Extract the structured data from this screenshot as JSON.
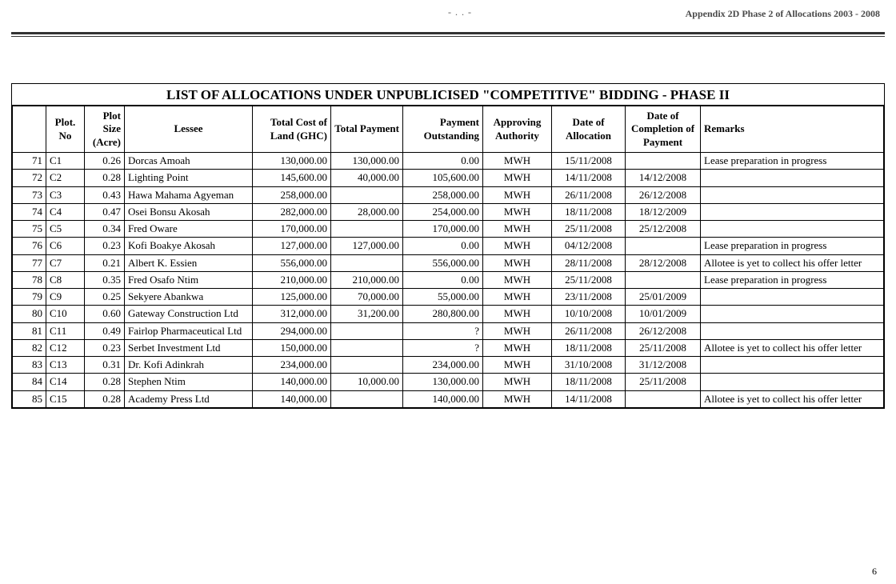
{
  "header": {
    "appendix": "Appendix 2D Phase 2 of Allocations 2003 - 2008",
    "smudge": "- . . -"
  },
  "table": {
    "title": "LIST OF ALLOCATIONS UNDER UNPUBLICISED \"COMPETITIVE\" BIDDING - PHASE II",
    "columns": {
      "idx": "",
      "plot": "Plot. No",
      "size": "Plot Size (Acre)",
      "lessee": "Lessee",
      "cost": "Total Cost of Land (GHC)",
      "paid": "Total Payment",
      "out": "Payment Outstanding",
      "auth": "Approving Authority",
      "dalloc": "Date of Allocation",
      "dcomp": "Date of Completion of Payment",
      "remarks": "Remarks"
    },
    "rows": [
      {
        "idx": "71",
        "plot": "C1",
        "size": "0.26",
        "lessee": "Dorcas Amoah",
        "cost": "130,000.00",
        "paid": "130,000.00",
        "out": "0.00",
        "auth": "MWH",
        "dalloc": "15/11/2008",
        "dcomp": "",
        "remarks": "Lease preparation in progress"
      },
      {
        "idx": "72",
        "plot": "C2",
        "size": "0.28",
        "lessee": "Lighting Point",
        "cost": "145,600.00",
        "paid": "40,000.00",
        "out": "105,600.00",
        "auth": "MWH",
        "dalloc": "14/11/2008",
        "dcomp": "14/12/2008",
        "remarks": ""
      },
      {
        "idx": "73",
        "plot": "C3",
        "size": "0.43",
        "lessee": "Hawa Mahama Agyeman",
        "cost": "258,000.00",
        "paid": "",
        "out": "258,000.00",
        "auth": "MWH",
        "dalloc": "26/11/2008",
        "dcomp": "26/12/2008",
        "remarks": ""
      },
      {
        "idx": "74",
        "plot": "C4",
        "size": "0.47",
        "lessee": "Osei Bonsu Akosah",
        "cost": "282,000.00",
        "paid": "28,000.00",
        "out": "254,000.00",
        "auth": "MWH",
        "dalloc": "18/11/2008",
        "dcomp": "18/12/2009",
        "remarks": ""
      },
      {
        "idx": "75",
        "plot": "C5",
        "size": "0.34",
        "lessee": "Fred Oware",
        "cost": "170,000.00",
        "paid": "",
        "out": "170,000.00",
        "auth": "MWH",
        "dalloc": "25/11/2008",
        "dcomp": "25/12/2008",
        "remarks": ""
      },
      {
        "idx": "76",
        "plot": "C6",
        "size": "0.23",
        "lessee": "Kofi Boakye Akosah",
        "cost": "127,000.00",
        "paid": "127,000.00",
        "out": "0.00",
        "auth": "MWH",
        "dalloc": "04/12/2008",
        "dcomp": "",
        "remarks": "Lease preparation in progress"
      },
      {
        "idx": "77",
        "plot": "C7",
        "size": "0.21",
        "lessee": "Albert K. Essien",
        "cost": "556,000.00",
        "paid": "",
        "out": "556,000.00",
        "auth": "MWH",
        "dalloc": "28/11/2008",
        "dcomp": "28/12/2008",
        "remarks": "Allotee is yet to collect his offer letter"
      },
      {
        "idx": "78",
        "plot": "C8",
        "size": "0.35",
        "lessee": "Fred Osafo Ntim",
        "cost": "210,000.00",
        "paid": "210,000.00",
        "out": "0.00",
        "auth": "MWH",
        "dalloc": "25/11/2008",
        "dcomp": "",
        "remarks": "Lease preparation in progress"
      },
      {
        "idx": "79",
        "plot": "C9",
        "size": "0.25",
        "lessee": "Sekyere Abankwa",
        "cost": "125,000.00",
        "paid": "70,000.00",
        "out": "55,000.00",
        "auth": "MWH",
        "dalloc": "23/11/2008",
        "dcomp": "25/01/2009",
        "remarks": ""
      },
      {
        "idx": "80",
        "plot": "C10",
        "size": "0.60",
        "lessee": "Gateway Construction Ltd",
        "cost": "312,000.00",
        "paid": "31,200.00",
        "out": "280,800.00",
        "auth": "MWH",
        "dalloc": "10/10/2008",
        "dcomp": "10/01/2009",
        "remarks": ""
      },
      {
        "idx": "81",
        "plot": "C11",
        "size": "0.49",
        "lessee": "Fairlop Pharmaceutical Ltd",
        "cost": "294,000.00",
        "paid": "",
        "out": "?",
        "auth": "MWH",
        "dalloc": "26/11/2008",
        "dcomp": "26/12/2008",
        "remarks": ""
      },
      {
        "idx": "82",
        "plot": "C12",
        "size": "0.23",
        "lessee": "Serbet Investment Ltd",
        "cost": "150,000.00",
        "paid": "",
        "out": "?",
        "auth": "MWH",
        "dalloc": "18/11/2008",
        "dcomp": "25/11/2008",
        "remarks": "Allotee is yet to collect his offer letter"
      },
      {
        "idx": "83",
        "plot": "C13",
        "size": "0.31",
        "lessee": "Dr. Kofi Adinkrah",
        "cost": "234,000.00",
        "paid": "",
        "out": "234,000.00",
        "auth": "MWH",
        "dalloc": "31/10/2008",
        "dcomp": "31/12/2008",
        "remarks": ""
      },
      {
        "idx": "84",
        "plot": "C14",
        "size": "0.28",
        "lessee": "Stephen Ntim",
        "cost": "140,000.00",
        "paid": "10,000.00",
        "out": "130,000.00",
        "auth": "MWH",
        "dalloc": "18/11/2008",
        "dcomp": "25/11/2008",
        "remarks": ""
      },
      {
        "idx": "85",
        "plot": "C15",
        "size": "0.28",
        "lessee": "Academy Press Ltd",
        "cost": "140,000.00",
        "paid": "",
        "out": "140,000.00",
        "auth": "MWH",
        "dalloc": "14/11/2008",
        "dcomp": "",
        "remarks": "Allotee is yet to collect his offer letter"
      }
    ]
  },
  "page_number": "6"
}
